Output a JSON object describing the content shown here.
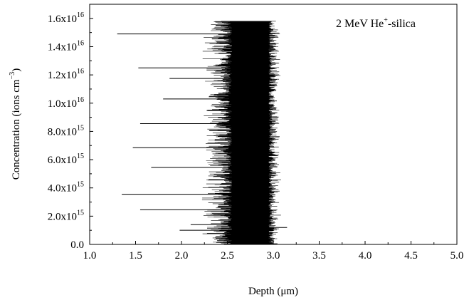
{
  "chart_data": {
    "type": "line",
    "annotation": {
      "text": "2 MeV He",
      "sup": "+",
      "suffix": "-silica"
    },
    "xlabel": "Depth (μm)",
    "ylabel": {
      "prefix": "Concentration (ions cm",
      "sup": "−3",
      "suffix": ")"
    },
    "xlim": [
      1.0,
      5.0
    ],
    "ylim": [
      0,
      1.7e+16
    ],
    "x_ticks": [
      {
        "value": 1.0,
        "label": "1.0"
      },
      {
        "value": 1.5,
        "label": "1.5"
      },
      {
        "value": 2.0,
        "label": "2.0"
      },
      {
        "value": 2.5,
        "label": "2.5"
      },
      {
        "value": 3.0,
        "label": "3.0"
      },
      {
        "value": 3.5,
        "label": "3.5"
      },
      {
        "value": 4.0,
        "label": "4.0"
      },
      {
        "value": 4.5,
        "label": "4.5"
      },
      {
        "value": 5.0,
        "label": "5.0"
      }
    ],
    "y_ticks": [
      {
        "value": 0,
        "label": "0.0",
        "exp": ""
      },
      {
        "value": 2000000000000000.0,
        "label": "2.0x10",
        "exp": "15"
      },
      {
        "value": 4000000000000000.0,
        "label": "4.0x10",
        "exp": "15"
      },
      {
        "value": 6000000000000000.0,
        "label": "6.0x10",
        "exp": "15"
      },
      {
        "value": 8000000000000000.0,
        "label": "8.0x10",
        "exp": "15"
      },
      {
        "value": 1e+16,
        "label": "1.0x10",
        "exp": "16"
      },
      {
        "value": 1.2e+16,
        "label": "1.2x10",
        "exp": "16"
      },
      {
        "value": 1.4e+16,
        "label": "1.4x10",
        "exp": "16"
      },
      {
        "value": 1.6e+16,
        "label": "1.6x10",
        "exp": "16"
      }
    ],
    "profile_envelope": {
      "y_range": [
        0,
        1.58e+16
      ],
      "center_depth": 2.75,
      "core_min": 2.55,
      "core_max": 2.95,
      "spikes": [
        {
          "y": 1.49e+16,
          "x": 1.3
        },
        {
          "y": 1.25e+16,
          "x": 1.53
        },
        {
          "y": 1.175e+16,
          "x": 1.87
        },
        {
          "y": 1.03e+16,
          "x": 1.8
        },
        {
          "y": 8550000000000000.0,
          "x": 1.55
        },
        {
          "y": 6850000000000000.0,
          "x": 1.47
        },
        {
          "y": 5450000000000000.0,
          "x": 1.67
        },
        {
          "y": 3550000000000000.0,
          "x": 1.35
        },
        {
          "y": 2450000000000000.0,
          "x": 1.55
        },
        {
          "y": 1400000000000000.0,
          "x": 2.1
        },
        {
          "y": 1000000000000000.0,
          "x": 1.98
        },
        {
          "y": 1200000000000000.0,
          "x": 3.15
        }
      ]
    }
  }
}
